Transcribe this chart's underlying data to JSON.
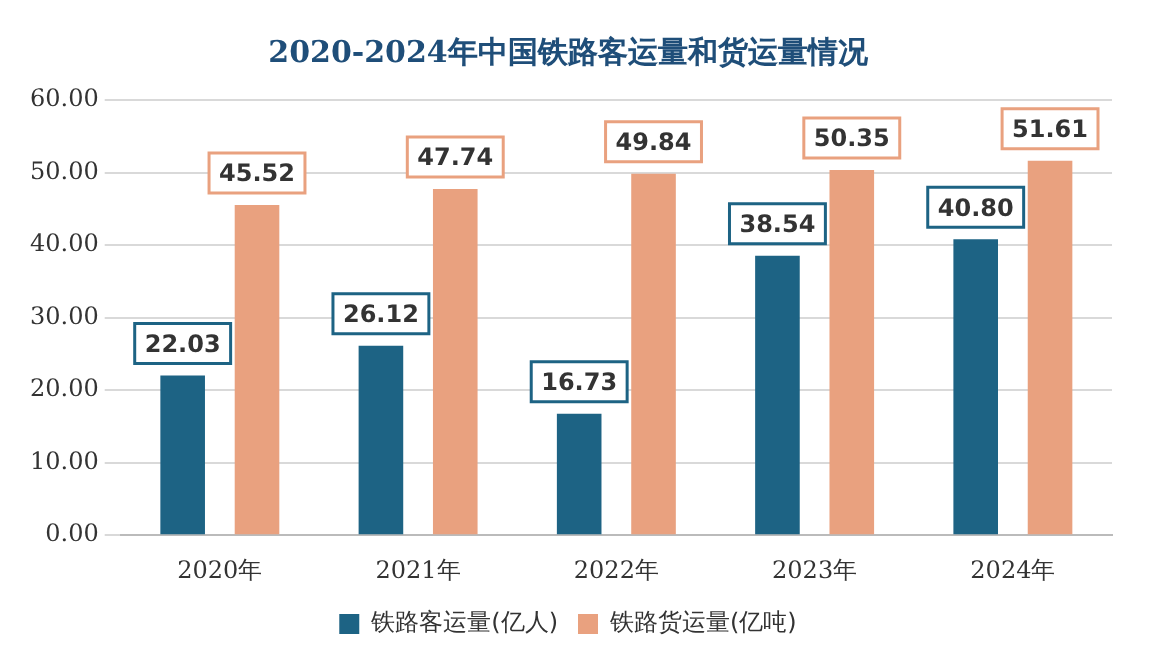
{
  "chart_data": {
    "type": "bar",
    "title": "2020-2024年中国铁路客运量和货运量情况",
    "categories": [
      "2020年",
      "2021年",
      "2022年",
      "2023年",
      "2024年"
    ],
    "series": [
      {
        "name": "铁路客运量(亿人)",
        "color": "#1d6384",
        "values": [
          22.03,
          26.12,
          16.73,
          38.54,
          40.8
        ],
        "value_labels": [
          "22.03",
          "26.12",
          "16.73",
          "38.54",
          "40.80"
        ]
      },
      {
        "name": "铁路货运量(亿吨)",
        "color": "#e9a17f",
        "values": [
          45.52,
          47.74,
          49.84,
          50.35,
          51.61
        ],
        "value_labels": [
          "45.52",
          "47.74",
          "49.84",
          "50.35",
          "51.61"
        ]
      }
    ],
    "ylim": [
      0,
      60
    ],
    "yticks": [
      {
        "value": 0,
        "label": "0.00"
      },
      {
        "value": 10,
        "label": "10.00"
      },
      {
        "value": 20,
        "label": "20.00"
      },
      {
        "value": 30,
        "label": "30.00"
      },
      {
        "value": 40,
        "label": "40.00"
      },
      {
        "value": 50,
        "label": "50.00"
      },
      {
        "value": 60,
        "label": "60.00"
      }
    ],
    "grid": "y",
    "legend": "bottom"
  }
}
